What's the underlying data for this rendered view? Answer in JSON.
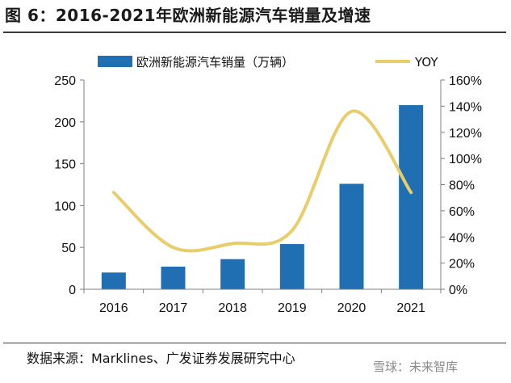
{
  "title": "图 6：2016-2021年欧洲新能源汽车销量及增速",
  "source": "数据来源：Marklines、广发证券发展研究中心",
  "watermark": "雪球：未来智库",
  "chart_data": {
    "type": "bar",
    "categories": [
      "2016",
      "2017",
      "2018",
      "2019",
      "2020",
      "2021"
    ],
    "series": [
      {
        "name": "欧洲新能源汽车销量（万辆）",
        "type": "bar",
        "axis": "left",
        "values": [
          20,
          27,
          36,
          54,
          126,
          220
        ],
        "color": "#1f6fb2"
      },
      {
        "name": "YOY",
        "type": "line",
        "axis": "right",
        "smooth": true,
        "values": [
          74,
          32,
          35,
          45,
          136,
          74
        ],
        "color": "#e8cd6a"
      }
    ],
    "left_axis": {
      "ticks": [
        "0",
        "50",
        "100",
        "150",
        "200",
        "250"
      ],
      "ylim": [
        0,
        250
      ]
    },
    "right_axis": {
      "ticks": [
        "0%",
        "20%",
        "40%",
        "60%",
        "80%",
        "100%",
        "120%",
        "140%",
        "160%"
      ],
      "ylim": [
        0,
        160
      ]
    },
    "legend_placement": "top",
    "grid": false
  }
}
